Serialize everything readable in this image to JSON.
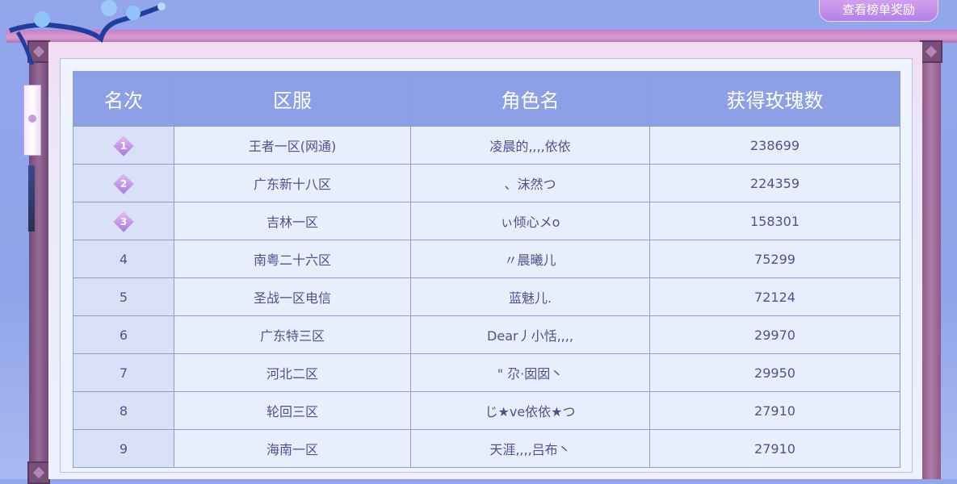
{
  "header": {
    "rewards_button": "查看榜单奖励"
  },
  "table": {
    "columns": [
      "名次",
      "区服",
      "角色名",
      "获得玫瑰数"
    ],
    "rows": [
      {
        "rank": "1",
        "server": "王者一区(网通)",
        "name": "凌晨的,,,,依依",
        "roses": "238699",
        "medal": true
      },
      {
        "rank": "2",
        "server": "广东新十八区",
        "name": "、沫然つ",
        "roses": "224359",
        "medal": true
      },
      {
        "rank": "3",
        "server": "吉林一区",
        "name": "ぃ倾心メo",
        "roses": "158301",
        "medal": true
      },
      {
        "rank": "4",
        "server": "南粤二十六区",
        "name": "〃晨曦儿",
        "roses": "75299",
        "medal": false
      },
      {
        "rank": "5",
        "server": "圣战一区电信",
        "name": "蓝魅儿.",
        "roses": "72124",
        "medal": false
      },
      {
        "rank": "6",
        "server": "广东特三区",
        "name": "Dear丿小恬,,,,",
        "roses": "29970",
        "medal": false
      },
      {
        "rank": "7",
        "server": "河北二区",
        "name": "\" 尕·囡囡丶",
        "roses": "29950",
        "medal": false
      },
      {
        "rank": "8",
        "server": "轮回三区",
        "name": "じ★ve依依★つ",
        "roses": "27910",
        "medal": false
      },
      {
        "rank": "9",
        "server": "海南一区",
        "name": "天涯,,,,吕布丶",
        "roses": "27910",
        "medal": false
      }
    ]
  },
  "colors": {
    "header_bg": "#8d9fe6",
    "text": "#4d5290",
    "medal": "#b98ae8"
  }
}
